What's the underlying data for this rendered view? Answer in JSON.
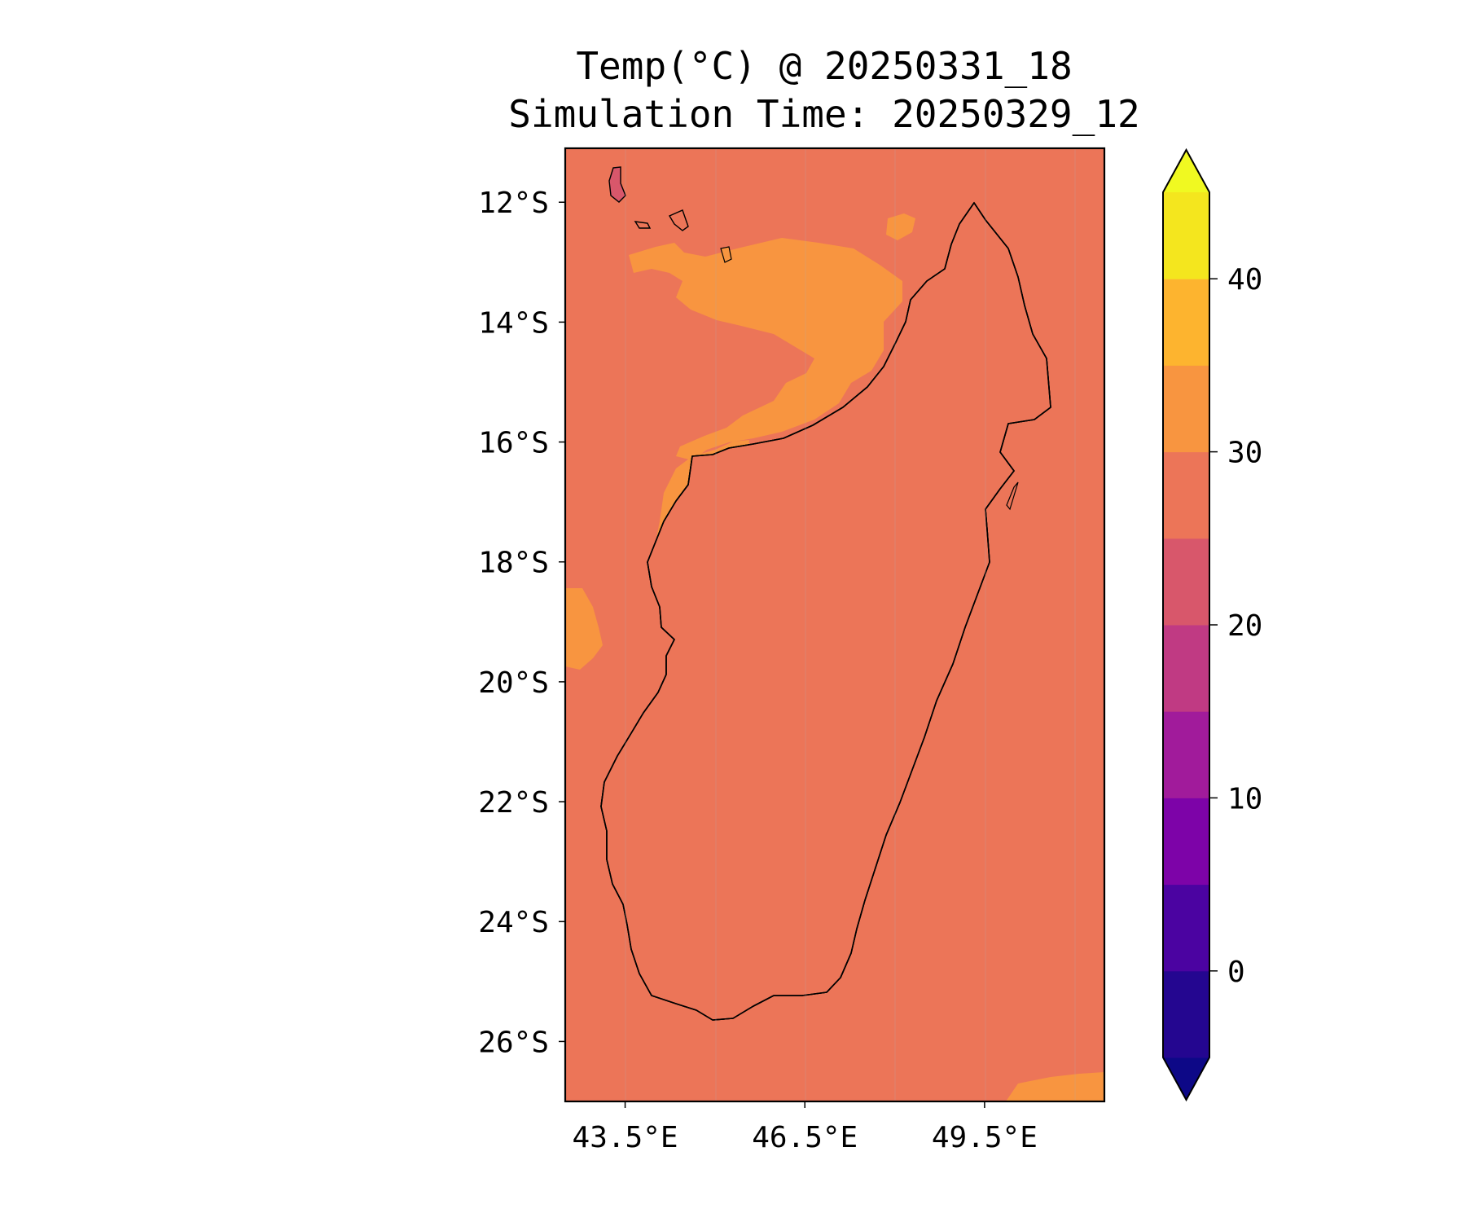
{
  "title": {
    "line1": "Temp(°C) @ 20250331_18",
    "line2": "Simulation Time: 20250329_12"
  },
  "map": {
    "region_lon": [
      42.5,
      51.5
    ],
    "region_lat": [
      -27.0,
      -11.1
    ],
    "ocean_temp_band": "25–30",
    "x_ticks": [
      {
        "value": 43.5,
        "label": "43.5°E"
      },
      {
        "value": 46.5,
        "label": "46.5°E"
      },
      {
        "value": 49.5,
        "label": "49.5°E"
      }
    ],
    "y_ticks": [
      {
        "value": -12,
        "label": "12°S"
      },
      {
        "value": -14,
        "label": "14°S"
      },
      {
        "value": -16,
        "label": "16°S"
      },
      {
        "value": -18,
        "label": "18°S"
      },
      {
        "value": -20,
        "label": "20°S"
      },
      {
        "value": -22,
        "label": "22°S"
      },
      {
        "value": -24,
        "label": "24°S"
      },
      {
        "value": -26,
        "label": "26°S"
      }
    ]
  },
  "colorbar": {
    "min": -5,
    "max": 45,
    "extend": "both",
    "levels": [
      {
        "from": -5,
        "to": 0,
        "color": "#240690"
      },
      {
        "from": 0,
        "to": 5,
        "color": "#4b03a1"
      },
      {
        "from": 5,
        "to": 10,
        "color": "#7d03a8"
      },
      {
        "from": 10,
        "to": 15,
        "color": "#a11b9b"
      },
      {
        "from": 15,
        "to": 20,
        "color": "#c03a83"
      },
      {
        "from": 20,
        "to": 25,
        "color": "#d8576b"
      },
      {
        "from": 25,
        "to": 30,
        "color": "#ec7558"
      },
      {
        "from": 30,
        "to": 35,
        "color": "#f89540"
      },
      {
        "from": 35,
        "to": 40,
        "color": "#fdb42f"
      },
      {
        "from": 40,
        "to": 45,
        "color": "#f4e61e"
      }
    ],
    "under_color": "#0d0887",
    "over_color": "#f0f921",
    "ticks": [
      {
        "value": 0,
        "label": "0"
      },
      {
        "value": 10,
        "label": "10"
      },
      {
        "value": 20,
        "label": "20"
      },
      {
        "value": 30,
        "label": "30"
      },
      {
        "value": 40,
        "label": "40"
      }
    ]
  }
}
